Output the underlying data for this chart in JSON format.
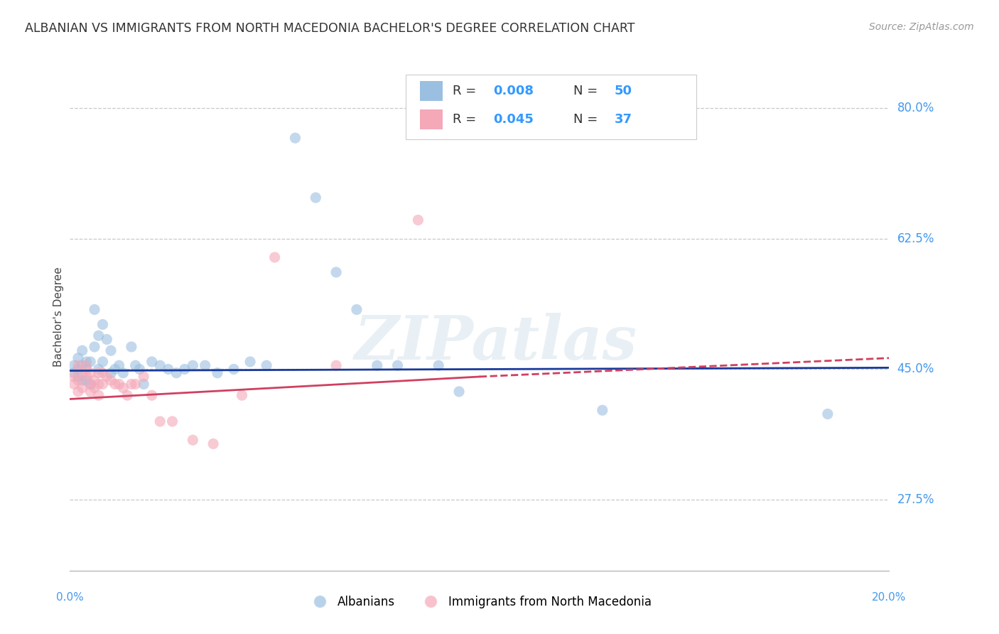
{
  "title": "ALBANIAN VS IMMIGRANTS FROM NORTH MACEDONIA BACHELOR'S DEGREE CORRELATION CHART",
  "source": "Source: ZipAtlas.com",
  "ylabel": "Bachelor's Degree",
  "xlim": [
    0.0,
    0.2
  ],
  "ylim": [
    0.18,
    0.86
  ],
  "yticks": [
    0.275,
    0.45,
    0.625,
    0.8
  ],
  "ytick_labels": [
    "27.5%",
    "45.0%",
    "62.5%",
    "80.0%"
  ],
  "background_color": "#ffffff",
  "grid_color": "#c8c8c8",
  "blue_color": "#9bbfe0",
  "pink_color": "#f4a8b8",
  "trend_blue": "#1a3a9a",
  "trend_pink": "#d04060",
  "watermark": "ZIPatlas",
  "albanians_x": [
    0.001,
    0.001,
    0.002,
    0.002,
    0.002,
    0.003,
    0.003,
    0.003,
    0.004,
    0.004,
    0.004,
    0.005,
    0.005,
    0.006,
    0.006,
    0.007,
    0.007,
    0.008,
    0.008,
    0.009,
    0.01,
    0.01,
    0.011,
    0.012,
    0.013,
    0.015,
    0.016,
    0.017,
    0.018,
    0.02,
    0.022,
    0.024,
    0.026,
    0.028,
    0.03,
    0.033,
    0.036,
    0.04,
    0.044,
    0.048,
    0.055,
    0.06,
    0.065,
    0.07,
    0.075,
    0.08,
    0.09,
    0.095,
    0.13,
    0.185
  ],
  "albanians_y": [
    0.455,
    0.445,
    0.465,
    0.45,
    0.44,
    0.475,
    0.455,
    0.435,
    0.46,
    0.45,
    0.435,
    0.46,
    0.43,
    0.53,
    0.48,
    0.495,
    0.45,
    0.51,
    0.46,
    0.49,
    0.475,
    0.445,
    0.45,
    0.455,
    0.445,
    0.48,
    0.455,
    0.45,
    0.43,
    0.46,
    0.455,
    0.45,
    0.445,
    0.45,
    0.455,
    0.455,
    0.445,
    0.45,
    0.46,
    0.455,
    0.76,
    0.68,
    0.58,
    0.53,
    0.455,
    0.455,
    0.455,
    0.42,
    0.395,
    0.39
  ],
  "macedonia_x": [
    0.001,
    0.001,
    0.002,
    0.002,
    0.002,
    0.003,
    0.003,
    0.004,
    0.004,
    0.005,
    0.005,
    0.005,
    0.006,
    0.006,
    0.007,
    0.007,
    0.007,
    0.008,
    0.008,
    0.009,
    0.01,
    0.011,
    0.012,
    0.013,
    0.014,
    0.015,
    0.016,
    0.018,
    0.02,
    0.022,
    0.025,
    0.03,
    0.035,
    0.042,
    0.05,
    0.065,
    0.085
  ],
  "macedonia_y": [
    0.44,
    0.43,
    0.455,
    0.435,
    0.42,
    0.445,
    0.425,
    0.455,
    0.44,
    0.43,
    0.445,
    0.42,
    0.435,
    0.425,
    0.445,
    0.43,
    0.415,
    0.445,
    0.43,
    0.44,
    0.435,
    0.43,
    0.43,
    0.425,
    0.415,
    0.43,
    0.43,
    0.44,
    0.415,
    0.38,
    0.38,
    0.355,
    0.35,
    0.415,
    0.6,
    0.455,
    0.65
  ]
}
